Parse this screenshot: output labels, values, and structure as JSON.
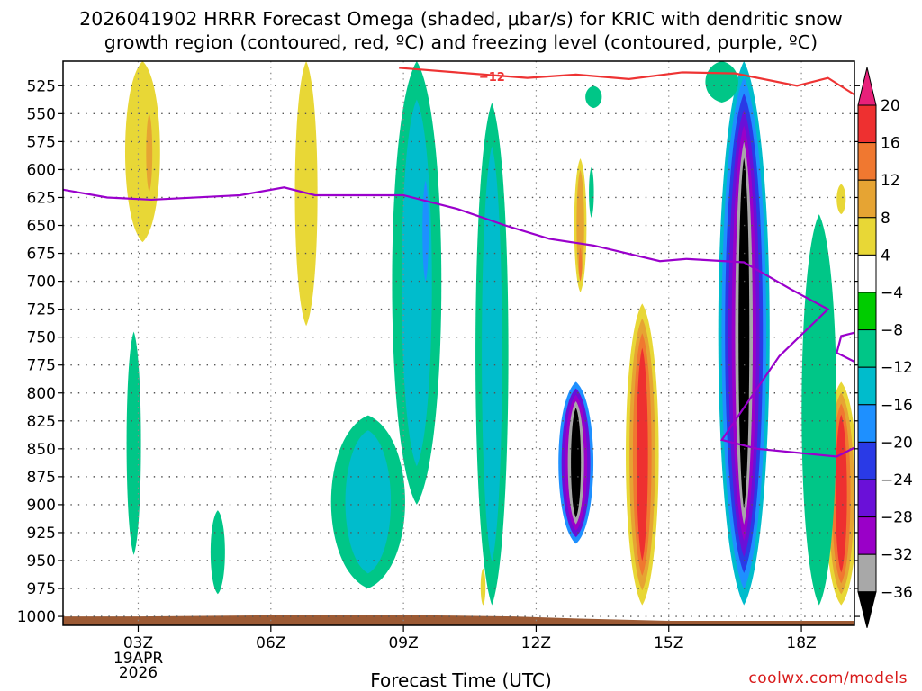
{
  "title_lines": [
    "2026041902 HRRR Forecast Omega (shaded, μbar/s) for KRIC with dendritic snow",
    "growth region (contoured, red, ºC) and freezing level (contoured, purple, ºC)"
  ],
  "xlabel": "Forecast Time (UTC)",
  "credit": "coolwx.com/models",
  "colors": {
    "terrain": "#9c5a34",
    "dgz_contour": "#ee3333",
    "freezing_contour": "#9a00cc",
    "grid": "#555555"
  },
  "chart_data": {
    "type": "heatmap",
    "x_range_hours_utc": [
      1.3,
      19.2
    ],
    "y_range_mb": [
      503,
      1008
    ],
    "y_axis_inverted": true,
    "grid": true,
    "x_ticks": [
      {
        "hour": 3,
        "label": "03Z",
        "date": [
          "19APR",
          "2026"
        ]
      },
      {
        "hour": 6,
        "label": "06Z"
      },
      {
        "hour": 9,
        "label": "09Z"
      },
      {
        "hour": 12,
        "label": "12Z"
      },
      {
        "hour": 15,
        "label": "15Z"
      },
      {
        "hour": 18,
        "label": "18Z"
      }
    ],
    "y_ticks": [
      525,
      550,
      575,
      600,
      625,
      650,
      675,
      700,
      725,
      750,
      775,
      800,
      825,
      850,
      875,
      900,
      925,
      950,
      975,
      1000
    ],
    "colorbar": {
      "labels": [
        "20",
        "16",
        "12",
        "8",
        "4",
        "−4",
        "−8",
        "−12",
        "−16",
        "−20",
        "−24",
        "−28",
        "−32",
        "−36"
      ],
      "bins": [
        {
          "range": [
            16,
            20
          ],
          "color": "#ee3030"
        },
        {
          "range": [
            12,
            16
          ],
          "color": "#f07830"
        },
        {
          "range": [
            8,
            12
          ],
          "color": "#e6a433"
        },
        {
          "range": [
            4,
            8
          ],
          "color": "#e8d736"
        },
        {
          "range": [
            -4,
            4
          ],
          "color": "#ffffff"
        },
        {
          "range": [
            -8,
            -4
          ],
          "color": "#00cc00"
        },
        {
          "range": [
            -12,
            -8
          ],
          "color": "#00c687"
        },
        {
          "range": [
            -16,
            -12
          ],
          "color": "#00bccc"
        },
        {
          "range": [
            -20,
            -16
          ],
          "color": "#1e90ff"
        },
        {
          "range": [
            -24,
            -20
          ],
          "color": "#2a3ae6"
        },
        {
          "range": [
            -28,
            -24
          ],
          "color": "#6a10d8"
        },
        {
          "range": [
            -32,
            -28
          ],
          "color": "#9a00c8"
        },
        {
          "range": [
            -36,
            -32
          ],
          "color": "#a8a8a8"
        }
      ],
      "above_color": "#e8207a",
      "below_color": "#000000"
    },
    "omega_features": [
      {
        "hour": 3.1,
        "p_from": 503,
        "p_to": 665,
        "width_h": 0.85,
        "values": [
          4
        ]
      },
      {
        "hour": 3.25,
        "p_from": 550,
        "p_to": 620,
        "width_h": 0.15,
        "values": [
          8
        ]
      },
      {
        "hour": 6.8,
        "p_from": 503,
        "p_to": 740,
        "width_h": 0.55,
        "values": [
          4
        ]
      },
      {
        "hour": 9.3,
        "p_from": 503,
        "p_to": 900,
        "width_h": 1.2,
        "values": [
          -8,
          -12
        ]
      },
      {
        "hour": 9.5,
        "p_from": 610,
        "p_to": 700,
        "width_h": 0.15,
        "values": [
          -16
        ]
      },
      {
        "hour": 8.2,
        "p_from": 820,
        "p_to": 975,
        "width_h": 1.8,
        "values": [
          -8,
          -12
        ]
      },
      {
        "hour": 11.0,
        "p_from": 540,
        "p_to": 990,
        "width_h": 0.8,
        "values": [
          -8,
          -12
        ]
      },
      {
        "hour": 2.9,
        "p_from": 745,
        "p_to": 945,
        "width_h": 0.35,
        "values": [
          -8
        ]
      },
      {
        "hour": 4.8,
        "p_from": 905,
        "p_to": 980,
        "width_h": 0.35,
        "values": [
          -8
        ]
      },
      {
        "hour": 10.8,
        "p_from": 957,
        "p_to": 990,
        "width_h": 0.12,
        "values": [
          4
        ]
      },
      {
        "hour": 12.9,
        "p_from": 790,
        "p_to": 935,
        "width_h": 0.85,
        "values": [
          -16,
          -24,
          -28,
          -32,
          -36
        ]
      },
      {
        "hour": 13.0,
        "p_from": 590,
        "p_to": 710,
        "width_h": 0.3,
        "values": [
          4,
          8
        ]
      },
      {
        "hour": 13.0,
        "p_from": 670,
        "p_to": 700,
        "width_h": 0.07,
        "values": [
          12
        ]
      },
      {
        "hour": 13.3,
        "p_from": 525,
        "p_to": 545,
        "width_h": 0.4,
        "values": [
          -8
        ]
      },
      {
        "hour": 13.25,
        "p_from": 598,
        "p_to": 643,
        "width_h": 0.12,
        "values": [
          -8
        ]
      },
      {
        "hour": 14.4,
        "p_from": 720,
        "p_to": 990,
        "width_h": 0.8,
        "values": [
          4,
          8,
          12,
          16
        ]
      },
      {
        "hour": 16.7,
        "p_from": 503,
        "p_to": 990,
        "width_h": 1.25,
        "values": [
          -12,
          -16,
          -20,
          -24,
          -28,
          -32,
          -36
        ]
      },
      {
        "hour": 16.2,
        "p_from": 503,
        "p_to": 540,
        "width_h": 0.8,
        "values": [
          -8
        ]
      },
      {
        "hour": 18.9,
        "p_from": 790,
        "p_to": 990,
        "width_h": 0.8,
        "values": [
          4,
          8,
          12,
          16
        ]
      },
      {
        "hour": 18.9,
        "p_from": 613,
        "p_to": 640,
        "width_h": 0.22,
        "values": [
          4
        ]
      },
      {
        "hour": 18.4,
        "p_from": 640,
        "p_to": 990,
        "width_h": 0.85,
        "values": [
          -8
        ]
      }
    ],
    "dgz_contour": {
      "label": "−12",
      "label_hour": 11.0,
      "points": [
        [
          8.9,
          509
        ],
        [
          10.5,
          514
        ],
        [
          11.8,
          518
        ],
        [
          12.9,
          515
        ],
        [
          14.1,
          519
        ],
        [
          15.3,
          513
        ],
        [
          16.5,
          514
        ],
        [
          17.9,
          525
        ],
        [
          18.6,
          518
        ],
        [
          19.2,
          533
        ]
      ]
    },
    "freezing_contour": {
      "points": [
        [
          1.3,
          618
        ],
        [
          2.3,
          625
        ],
        [
          3.3,
          627
        ],
        [
          5.3,
          623
        ],
        [
          6.3,
          616
        ],
        [
          7.0,
          623
        ],
        [
          8.0,
          623
        ],
        [
          9.0,
          623
        ],
        [
          10.2,
          635
        ],
        [
          11.3,
          650
        ],
        [
          12.3,
          662
        ],
        [
          13.3,
          668
        ],
        [
          14.8,
          682
        ],
        [
          15.4,
          680
        ],
        [
          16.7,
          683
        ],
        [
          17.8,
          708
        ],
        [
          18.6,
          725
        ],
        [
          17.5,
          767
        ],
        [
          16.2,
          842
        ],
        [
          17.0,
          850
        ],
        [
          18.8,
          857
        ],
        [
          19.2,
          849
        ]
      ]
    },
    "freezing_contour_2": {
      "points": [
        [
          19.2,
          746
        ],
        [
          18.9,
          749
        ],
        [
          18.8,
          764
        ],
        [
          19.2,
          772
        ]
      ]
    },
    "terrain": {
      "points": [
        [
          1.3,
          1000
        ],
        [
          3.0,
          1000
        ],
        [
          6.0,
          999
        ],
        [
          8.0,
          999
        ],
        [
          9.5,
          999
        ],
        [
          11.5,
          1000
        ],
        [
          13.0,
          1002
        ],
        [
          15.0,
          1004
        ],
        [
          17.0,
          1004
        ],
        [
          19.2,
          1004
        ]
      ]
    }
  }
}
